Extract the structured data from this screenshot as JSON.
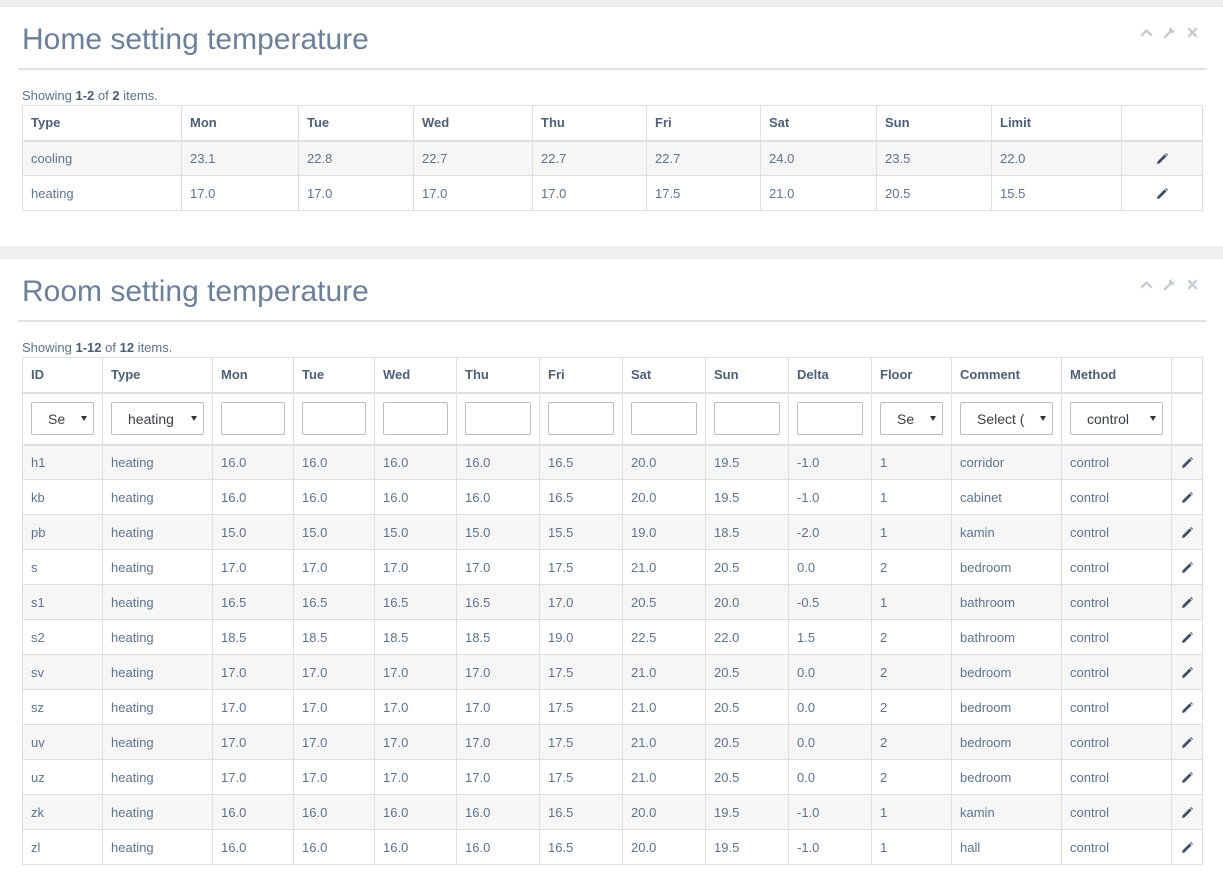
{
  "home": {
    "title": "Home setting temperature",
    "summary": {
      "prefix": "Showing ",
      "range": "1-2",
      "of": " of ",
      "total": "2",
      "suffix": " items."
    },
    "columns": [
      "Type",
      "Mon",
      "Tue",
      "Wed",
      "Thu",
      "Fri",
      "Sat",
      "Sun",
      "Limit"
    ],
    "rows": [
      [
        "cooling",
        "23.1",
        "22.8",
        "22.7",
        "22.7",
        "22.7",
        "24.0",
        "23.5",
        "22.0"
      ],
      [
        "heating",
        "17.0",
        "17.0",
        "17.0",
        "17.0",
        "17.5",
        "21.0",
        "20.5",
        "15.5"
      ]
    ]
  },
  "room": {
    "title": "Room setting temperature",
    "summary": {
      "prefix": "Showing ",
      "range": "1-12",
      "of": " of ",
      "total": "12",
      "suffix": " items."
    },
    "columns": [
      "ID",
      "Type",
      "Mon",
      "Tue",
      "Wed",
      "Thu",
      "Fri",
      "Sat",
      "Sun",
      "Delta",
      "Floor",
      "Comment",
      "Method"
    ],
    "filters": {
      "id": "Se",
      "type": "heating",
      "floor": "Se",
      "comment": "Select (",
      "method": "control"
    },
    "rows": [
      [
        "h1",
        "heating",
        "16.0",
        "16.0",
        "16.0",
        "16.0",
        "16.5",
        "20.0",
        "19.5",
        "-1.0",
        "1",
        "corridor",
        "control"
      ],
      [
        "kb",
        "heating",
        "16.0",
        "16.0",
        "16.0",
        "16.0",
        "16.5",
        "20.0",
        "19.5",
        "-1.0",
        "1",
        "cabinet",
        "control"
      ],
      [
        "pb",
        "heating",
        "15.0",
        "15.0",
        "15.0",
        "15.0",
        "15.5",
        "19.0",
        "18.5",
        "-2.0",
        "1",
        "kamin",
        "control"
      ],
      [
        "s",
        "heating",
        "17.0",
        "17.0",
        "17.0",
        "17.0",
        "17.5",
        "21.0",
        "20.5",
        "0.0",
        "2",
        "bedroom",
        "control"
      ],
      [
        "s1",
        "heating",
        "16.5",
        "16.5",
        "16.5",
        "16.5",
        "17.0",
        "20.5",
        "20.0",
        "-0.5",
        "1",
        "bathroom",
        "control"
      ],
      [
        "s2",
        "heating",
        "18.5",
        "18.5",
        "18.5",
        "18.5",
        "19.0",
        "22.5",
        "22.0",
        "1.5",
        "2",
        "bathroom",
        "control"
      ],
      [
        "sv",
        "heating",
        "17.0",
        "17.0",
        "17.0",
        "17.0",
        "17.5",
        "21.0",
        "20.5",
        "0.0",
        "2",
        "bedroom",
        "control"
      ],
      [
        "sz",
        "heating",
        "17.0",
        "17.0",
        "17.0",
        "17.0",
        "17.5",
        "21.0",
        "20.5",
        "0.0",
        "2",
        "bedroom",
        "control"
      ],
      [
        "uv",
        "heating",
        "17.0",
        "17.0",
        "17.0",
        "17.0",
        "17.5",
        "21.0",
        "20.5",
        "0.0",
        "2",
        "bedroom",
        "control"
      ],
      [
        "uz",
        "heating",
        "17.0",
        "17.0",
        "17.0",
        "17.0",
        "17.5",
        "21.0",
        "20.5",
        "0.0",
        "2",
        "bedroom",
        "control"
      ],
      [
        "zk",
        "heating",
        "16.0",
        "16.0",
        "16.0",
        "16.0",
        "16.5",
        "20.0",
        "19.5",
        "-1.0",
        "1",
        "kamin",
        "control"
      ],
      [
        "zl",
        "heating",
        "16.0",
        "16.0",
        "16.0",
        "16.0",
        "16.5",
        "20.0",
        "19.5",
        "-1.0",
        "1",
        "hall",
        "control"
      ]
    ]
  },
  "icons": {
    "collapse": "chevron-up-icon",
    "settings": "wrench-icon",
    "close": "close-icon",
    "edit": "pencil-icon"
  },
  "colors": {
    "title": "#6d8097",
    "text": "#5d7390",
    "icon": "#c6ccd3",
    "pencil": "#3f4f63"
  }
}
